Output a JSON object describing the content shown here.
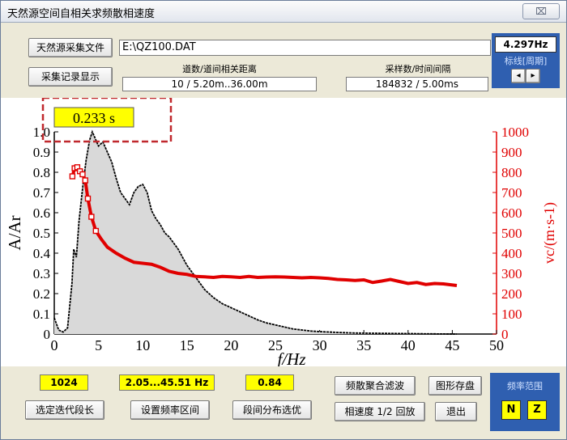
{
  "window": {
    "title": "天然源空间自相关求频散相速度",
    "close": "⌧"
  },
  "toolbar": {
    "source_file_button": "天然源采集文件",
    "file_path": "E:\\QZ100.DAT",
    "record_display_button": "采集记录显示",
    "distance_label": "道数/道间相关距离",
    "distance_value": "10 / 5.20m..36.00m",
    "samples_label": "采样数/时间间隔",
    "samples_value": "184832 / 5.00ms"
  },
  "freq_panel": {
    "value": "4.297Hz",
    "label": "标线[周期]",
    "prev": "◂",
    "next": "▸"
  },
  "annotation": {
    "time_label": "0.233 s"
  },
  "bottom": {
    "iter_value": "1024",
    "iter_button": "选定迭代段长",
    "range_value": "2.05...45.51 Hz",
    "range_button": "设置频率区间",
    "ratio_value": "0.84",
    "ratio_button": "段间分布选优",
    "filter_button": "频散聚合滤波",
    "export_button": "图形存盘",
    "speed_button": "相速度 1/2 回放",
    "exit_button": "退出",
    "freq_range_label": "频率范围",
    "freq_range_left": "N",
    "freq_range_right": "Z"
  },
  "chart_data": {
    "type": "line",
    "xlabel": "f/Hz",
    "ylabel_left": "A/Ar",
    "ylabel_right": "vc/(m·s-1)",
    "xlim": [
      0,
      50
    ],
    "ylim_left": [
      0,
      1.0
    ],
    "ylim_right": [
      0,
      1000
    ],
    "x_ticks": [
      "0",
      "5",
      "10",
      "15",
      "20",
      "25",
      "30",
      "35",
      "40",
      "45",
      "50"
    ],
    "y_ticks_left": [
      "0",
      "0.1",
      "0.2",
      "0.3",
      "0.4",
      "0.5",
      "0.6",
      "0.7",
      "0.8",
      "0.9",
      "1.0"
    ],
    "y_ticks_right": [
      "0",
      "100",
      "200",
      "300",
      "400",
      "500",
      "600",
      "700",
      "800",
      "900",
      "1000"
    ],
    "colors": {
      "spectrum": "#000000",
      "fill": "#d9d9d9",
      "velocity": "#e00000",
      "right_axis": "#e00000"
    },
    "series": [
      {
        "role": "amplitude",
        "x": [
          0,
          0.5,
          1,
          1.5,
          2.0,
          2.2,
          2.5,
          2.8,
          3.2,
          3.6,
          4.0,
          4.3,
          4.6,
          5.0,
          5.5,
          6.0,
          6.5,
          7.0,
          7.5,
          8.0,
          8.5,
          9.0,
          9.5,
          10.0,
          10.5,
          11.0,
          11.5,
          12.0,
          12.5,
          13.0,
          14.0,
          15.0,
          16.0,
          17.0,
          18.0,
          19.0,
          20.0,
          21.0,
          22.0,
          23.0,
          24.0,
          25.0,
          26.0,
          27.0,
          28.0,
          29.0,
          30.0,
          32.0,
          34.0,
          36.0,
          38.0,
          40.0,
          42.0,
          45.5
        ],
        "y": [
          0.08,
          0.02,
          0.01,
          0.03,
          0.25,
          0.42,
          0.38,
          0.56,
          0.72,
          0.86,
          0.96,
          1.0,
          0.97,
          0.93,
          0.95,
          0.9,
          0.85,
          0.77,
          0.7,
          0.67,
          0.64,
          0.7,
          0.73,
          0.74,
          0.7,
          0.61,
          0.57,
          0.54,
          0.5,
          0.48,
          0.42,
          0.34,
          0.28,
          0.22,
          0.18,
          0.15,
          0.13,
          0.11,
          0.09,
          0.07,
          0.055,
          0.045,
          0.035,
          0.025,
          0.02,
          0.015,
          0.012,
          0.008,
          0.005,
          0.004,
          0.003,
          0.002,
          0.001,
          0.0
        ]
      },
      {
        "role": "phase_velocity",
        "x": [
          2.05,
          2.3,
          2.6,
          2.9,
          3.2,
          3.5,
          3.8,
          4.2,
          4.7,
          5.3,
          6.0,
          7.0,
          8.0,
          9.0,
          10.0,
          11.0,
          12.0,
          13.0,
          14.0,
          15.0,
          16.0,
          17.0,
          18.0,
          19.0,
          20.0,
          21.0,
          22.0,
          23.0,
          24.0,
          25.0,
          26.0,
          27.0,
          28.0,
          29.0,
          30.0,
          31.0,
          32.0,
          33.0,
          34.0,
          35.0,
          36.0,
          37.0,
          38.0,
          39.0,
          40.0,
          41.0,
          42.0,
          43.0,
          44.0,
          45.51
        ],
        "y": [
          780,
          820,
          825,
          805,
          790,
          760,
          670,
          580,
          510,
          470,
          430,
          400,
          375,
          355,
          350,
          345,
          330,
          310,
          300,
          295,
          285,
          283,
          280,
          285,
          283,
          280,
          285,
          280,
          282,
          283,
          282,
          280,
          278,
          280,
          278,
          275,
          270,
          268,
          265,
          268,
          255,
          262,
          270,
          260,
          250,
          255,
          245,
          250,
          248,
          240
        ]
      }
    ],
    "highlight": {
      "label": "0.233 s"
    }
  }
}
